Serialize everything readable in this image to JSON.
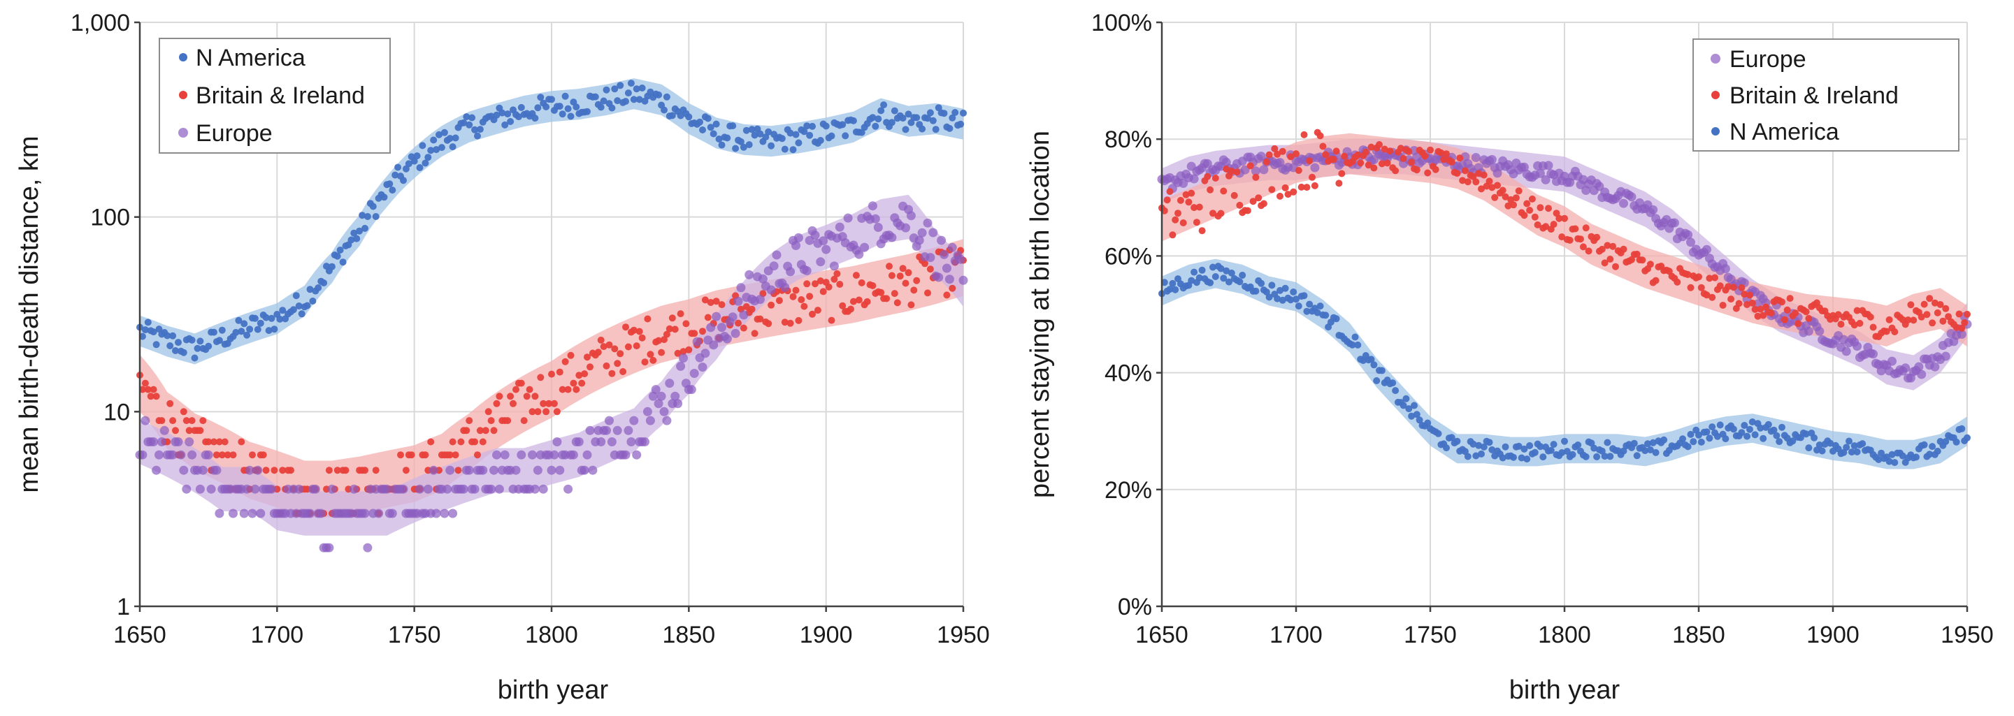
{
  "colors": {
    "N America": "#4472C4",
    "Britain & Ireland": "#E8403A",
    "Europe": "#8A5CC0",
    "band_N America": "#9DC3E6",
    "band_Britain & Ireland": "#F4AFAD",
    "band_Europe": "#CDB6E3"
  },
  "chart_data": [
    {
      "type": "scatter",
      "yscale": "log",
      "xlabel": "birth year",
      "ylabel": "mean birth-death distance, km",
      "xlim": [
        1650,
        1950
      ],
      "ylim": [
        1,
        1000
      ],
      "xticks": [
        "1650",
        "1700",
        "1750",
        "1800",
        "1850",
        "1900",
        "1950"
      ],
      "yticks": [
        "1",
        "10",
        "100",
        "1,000"
      ],
      "ytick_values": [
        1,
        10,
        100,
        1000
      ],
      "legend": [
        "N America",
        "Britain & Ireland",
        "Europe"
      ],
      "legend_position": "top-left",
      "series": [
        {
          "name": "N America",
          "x": [
            1650,
            1660,
            1670,
            1680,
            1690,
            1700,
            1710,
            1720,
            1730,
            1740,
            1750,
            1760,
            1770,
            1780,
            1790,
            1800,
            1810,
            1820,
            1830,
            1840,
            1850,
            1860,
            1870,
            1880,
            1890,
            1900,
            1910,
            1920,
            1930,
            1940,
            1950
          ],
          "values": [
            26,
            23,
            21,
            24,
            27,
            30,
            37,
            55,
            85,
            135,
            190,
            245,
            290,
            320,
            350,
            370,
            380,
            400,
            430,
            400,
            320,
            270,
            250,
            245,
            255,
            270,
            290,
            340,
            310,
            320,
            300
          ],
          "band_ratio": 1.2
        },
        {
          "name": "Britain & Ireland",
          "x": [
            1650,
            1660,
            1670,
            1680,
            1690,
            1700,
            1710,
            1720,
            1730,
            1740,
            1750,
            1760,
            1770,
            1780,
            1790,
            1800,
            1810,
            1820,
            1830,
            1840,
            1850,
            1860,
            1870,
            1880,
            1890,
            1900,
            1910,
            1920,
            1930,
            1940,
            1950
          ],
          "values": [
            14,
            9,
            7,
            6,
            5,
            4.5,
            4,
            4,
            4.2,
            4.5,
            4.8,
            5.5,
            7,
            9,
            11,
            13,
            16,
            19,
            22,
            25,
            27,
            30,
            32,
            34,
            36,
            38,
            40,
            43,
            46,
            50,
            55
          ],
          "band_ratio": 1.4
        },
        {
          "name": "Europe",
          "x": [
            1650,
            1660,
            1670,
            1680,
            1690,
            1700,
            1710,
            1720,
            1730,
            1740,
            1750,
            1760,
            1770,
            1780,
            1790,
            1800,
            1810,
            1820,
            1830,
            1840,
            1850,
            1860,
            1870,
            1880,
            1890,
            1900,
            1910,
            1920,
            1930,
            1940,
            1950
          ],
          "values": [
            7,
            6,
            5,
            4,
            4,
            3.2,
            3,
            3,
            3,
            3,
            3.5,
            4,
            4.5,
            5,
            5,
            5.5,
            6,
            7,
            8,
            11,
            16,
            24,
            36,
            50,
            62,
            70,
            80,
            95,
            100,
            65,
            45
          ],
          "band_ratio": 1.3
        }
      ]
    },
    {
      "type": "scatter",
      "xlabel": "birth year",
      "ylabel": "percent staying at birth location",
      "xlim": [
        1650,
        1950
      ],
      "ylim": [
        0,
        100
      ],
      "xticks": [
        "1650",
        "1700",
        "1750",
        "1800",
        "1850",
        "1900",
        "1950"
      ],
      "yticks": [
        "0%",
        "20%",
        "40%",
        "60%",
        "80%",
        "100%"
      ],
      "ytick_values": [
        0,
        20,
        40,
        60,
        80,
        100
      ],
      "legend": [
        "Europe",
        "Britain & Ireland",
        "N America"
      ],
      "legend_position": "top-right",
      "series": [
        {
          "name": "Europe",
          "x": [
            1650,
            1660,
            1670,
            1680,
            1690,
            1700,
            1710,
            1720,
            1730,
            1740,
            1750,
            1760,
            1770,
            1780,
            1790,
            1800,
            1810,
            1820,
            1830,
            1840,
            1850,
            1860,
            1870,
            1880,
            1890,
            1900,
            1910,
            1920,
            1930,
            1940,
            1950
          ],
          "values": [
            72,
            74,
            75,
            75.5,
            76,
            76,
            76.5,
            77,
            77,
            77,
            76.5,
            76,
            75.5,
            75,
            74.5,
            74,
            72,
            70,
            68,
            65,
            61,
            57,
            53,
            50,
            48,
            46,
            44,
            41,
            40,
            43,
            49
          ],
          "band_width": 3
        },
        {
          "name": "Britain & Ireland",
          "x": [
            1650,
            1660,
            1670,
            1680,
            1690,
            1700,
            1710,
            1720,
            1730,
            1740,
            1750,
            1760,
            1770,
            1780,
            1790,
            1800,
            1810,
            1820,
            1830,
            1840,
            1850,
            1860,
            1870,
            1880,
            1890,
            1900,
            1910,
            1920,
            1930,
            1940,
            1950
          ],
          "values": [
            66,
            68,
            70,
            72,
            74,
            76,
            77,
            77.5,
            77,
            76.5,
            76,
            75,
            73,
            70,
            67,
            65,
            62,
            60,
            58,
            56.5,
            55,
            53.5,
            52,
            51,
            50,
            49.5,
            49,
            48,
            50,
            51,
            48
          ],
          "band_width": 3.5
        },
        {
          "name": "N America",
          "x": [
            1650,
            1660,
            1670,
            1680,
            1690,
            1700,
            1710,
            1720,
            1730,
            1740,
            1750,
            1760,
            1770,
            1780,
            1790,
            1800,
            1810,
            1820,
            1830,
            1840,
            1850,
            1860,
            1870,
            1880,
            1890,
            1900,
            1910,
            1920,
            1930,
            1940,
            1950
          ],
          "values": [
            54,
            56,
            57,
            56,
            54,
            53,
            50,
            46,
            40,
            35,
            30,
            27,
            27,
            26.5,
            26.5,
            27,
            27,
            27,
            26.5,
            27.5,
            29,
            30,
            30.5,
            29.5,
            28.5,
            27.5,
            27,
            26,
            26,
            27,
            30
          ],
          "band_width": 2.5
        }
      ]
    }
  ]
}
